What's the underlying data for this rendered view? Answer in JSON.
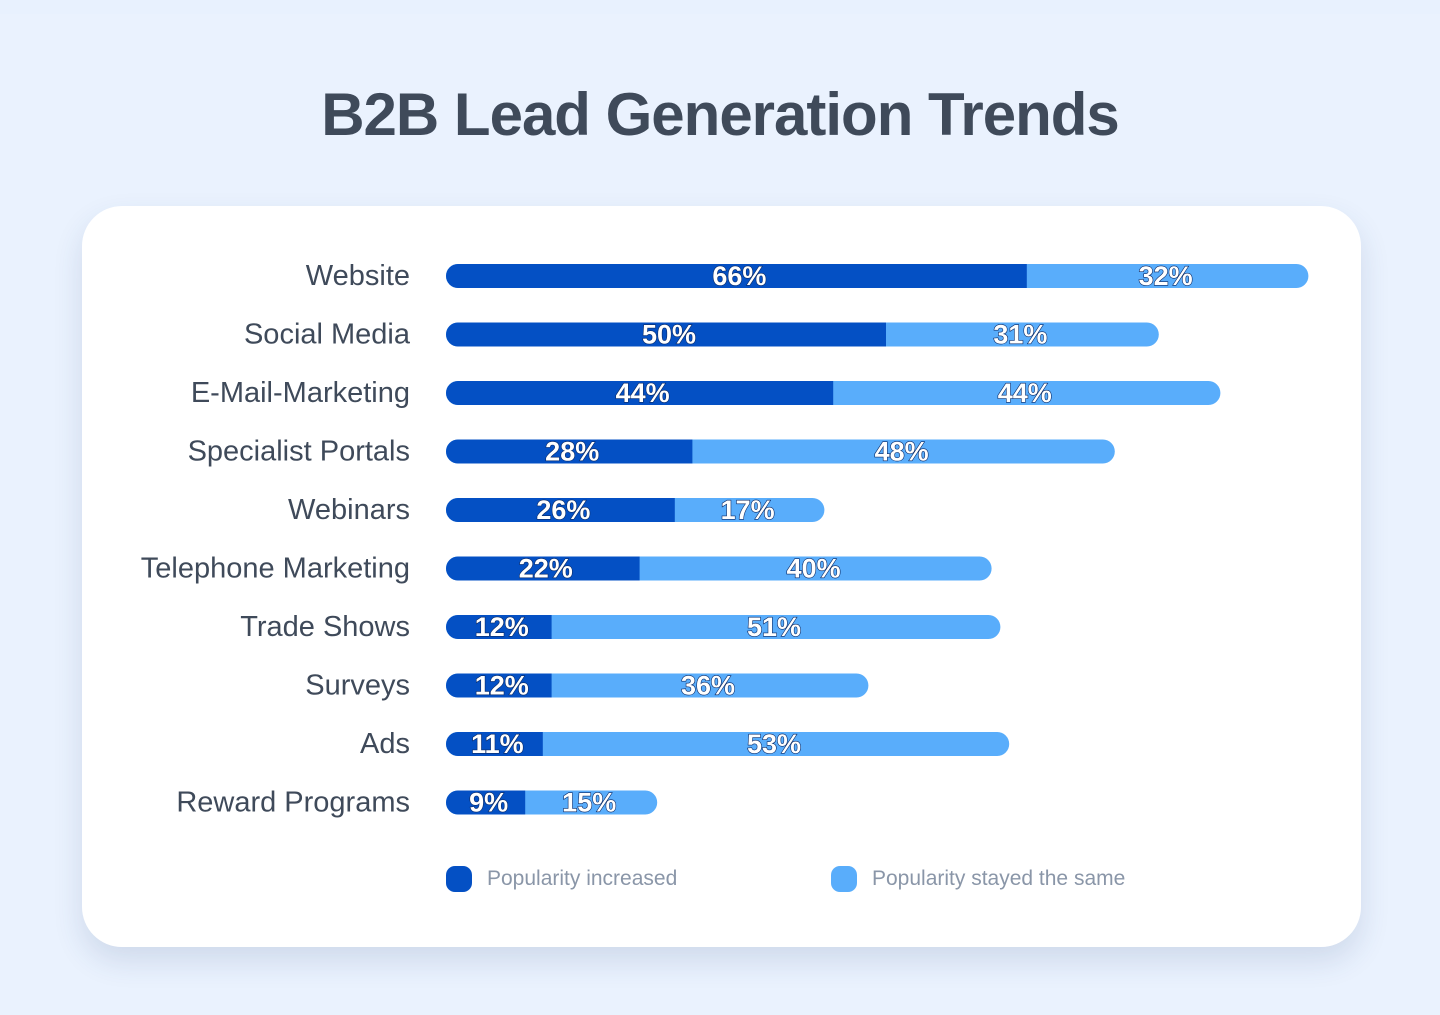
{
  "title": "B2B Lead Generation Trends",
  "colors": {
    "increased": "#0450c4",
    "same": "#59adfb",
    "label_text": "#3f4a5a"
  },
  "legend": [
    {
      "label": "Popularity increased",
      "color": "#0450c4"
    },
    {
      "label": "Popularity stayed the same",
      "color": "#59adfb"
    }
  ],
  "chart_data": {
    "type": "bar",
    "orientation": "horizontal",
    "stacked": true,
    "title": "B2B Lead Generation Trends",
    "categories": [
      "Website",
      "Social Media",
      "E-Mail-Marketing",
      "Specialist Portals",
      "Webinars",
      "Telephone Marketing",
      "Trade Shows",
      "Surveys",
      "Ads",
      "Reward Programs"
    ],
    "series": [
      {
        "name": "Popularity increased",
        "values": [
          66,
          50,
          44,
          28,
          26,
          22,
          12,
          12,
          11,
          9
        ]
      },
      {
        "name": "Popularity stayed the same",
        "values": [
          32,
          31,
          44,
          48,
          17,
          40,
          51,
          36,
          53,
          15
        ]
      }
    ],
    "value_suffix": "%",
    "grid": false,
    "legend_position": "bottom"
  }
}
